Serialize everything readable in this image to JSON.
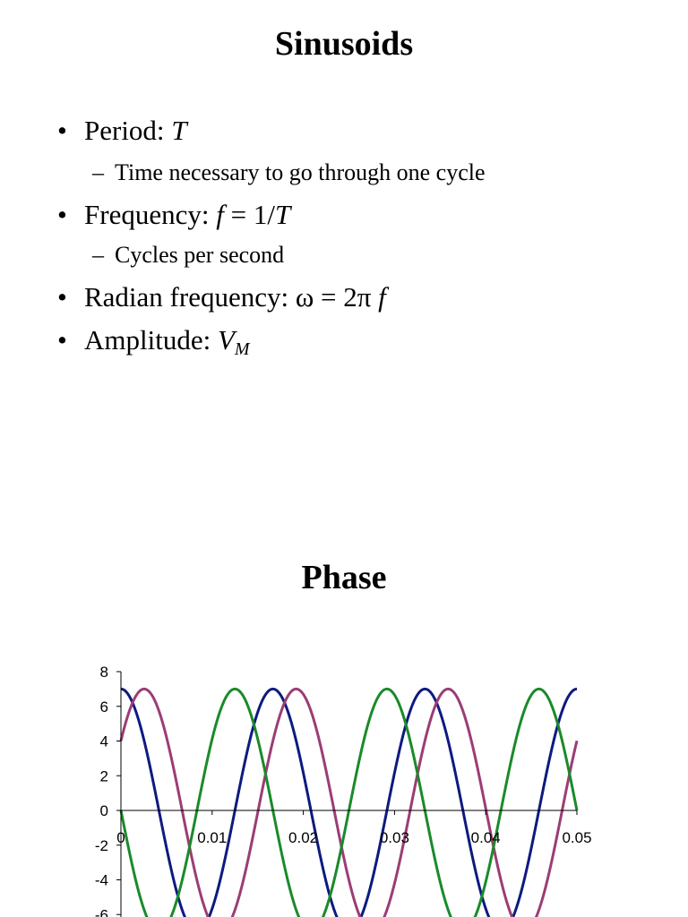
{
  "slide1": {
    "title": "Sinusoids",
    "bullets": [
      {
        "label": "Period: ",
        "math": "T"
      },
      {
        "sub": "Time necessary to go through one cycle"
      },
      {
        "label": "Frequency: ",
        "math_f": "f",
        "eq": " = 1/",
        "math_T": "T"
      },
      {
        "sub": "Cycles per second"
      },
      {
        "label": "Radian frequency: ω = 2π ",
        "math": "f"
      },
      {
        "label": "Amplitude: ",
        "math_V": "V",
        "math_M": "M"
      }
    ],
    "bullet_symbol": "•",
    "dash_symbol": "–"
  },
  "slide2": {
    "title": "Phase"
  },
  "chart_data": {
    "type": "line",
    "x_range": [
      0,
      0.05
    ],
    "ylim": [
      -8,
      8
    ],
    "x_ticks": [
      "0",
      "0.01",
      "0.02",
      "0.03",
      "0.04",
      "0.05"
    ],
    "y_ticks": [
      "8",
      "6",
      "4",
      "2",
      "0",
      "-2",
      "-4",
      "-6"
    ],
    "visible_y_range": [
      -6.4,
      8
    ],
    "series": [
      {
        "color": "#0d1a80",
        "amplitude": 7,
        "frequency": 60,
        "phase_deg": 0
      },
      {
        "color": "#9b3d74",
        "amplitude": 7,
        "frequency": 60,
        "phase_deg": -55
      },
      {
        "color": "#1a8a2a",
        "amplitude": 7,
        "frequency": 60,
        "phase_deg": 90
      }
    ],
    "grid": false,
    "legend": "none"
  }
}
